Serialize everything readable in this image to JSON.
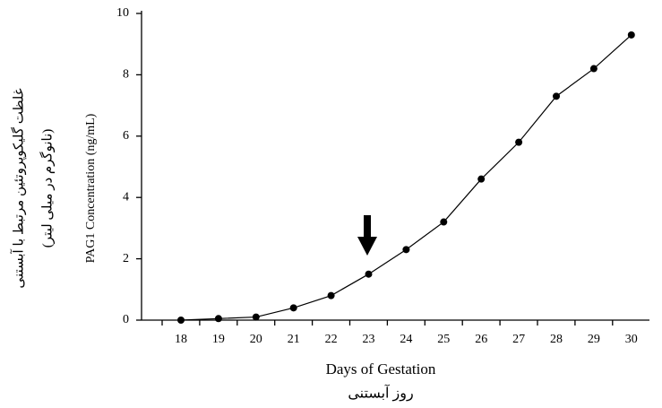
{
  "chart_data": {
    "type": "line",
    "y_label": "PAG1 Concentration (ng/mL)",
    "y_label_fa_1": "غلظت گلیکوپروتئین مرتبط با آبستنی",
    "y_label_fa_2": "(نانوگرم در میلی لیتر)",
    "x_label": "Days of Gestation",
    "x_label_fa": "روز آبستنی",
    "categories": [
      "18",
      "19",
      "20",
      "21",
      "22",
      "23",
      "24",
      "25",
      "26",
      "27",
      "28",
      "29",
      "30"
    ],
    "values": [
      0,
      0.05,
      0.1,
      0.4,
      0.8,
      1.5,
      2.3,
      3.2,
      4.6,
      5.8,
      7.3,
      8.2,
      9.3
    ],
    "color": "#000000",
    "ylim": [
      0,
      10
    ],
    "yticks": [
      0,
      2,
      4,
      6,
      8,
      10
    ]
  }
}
